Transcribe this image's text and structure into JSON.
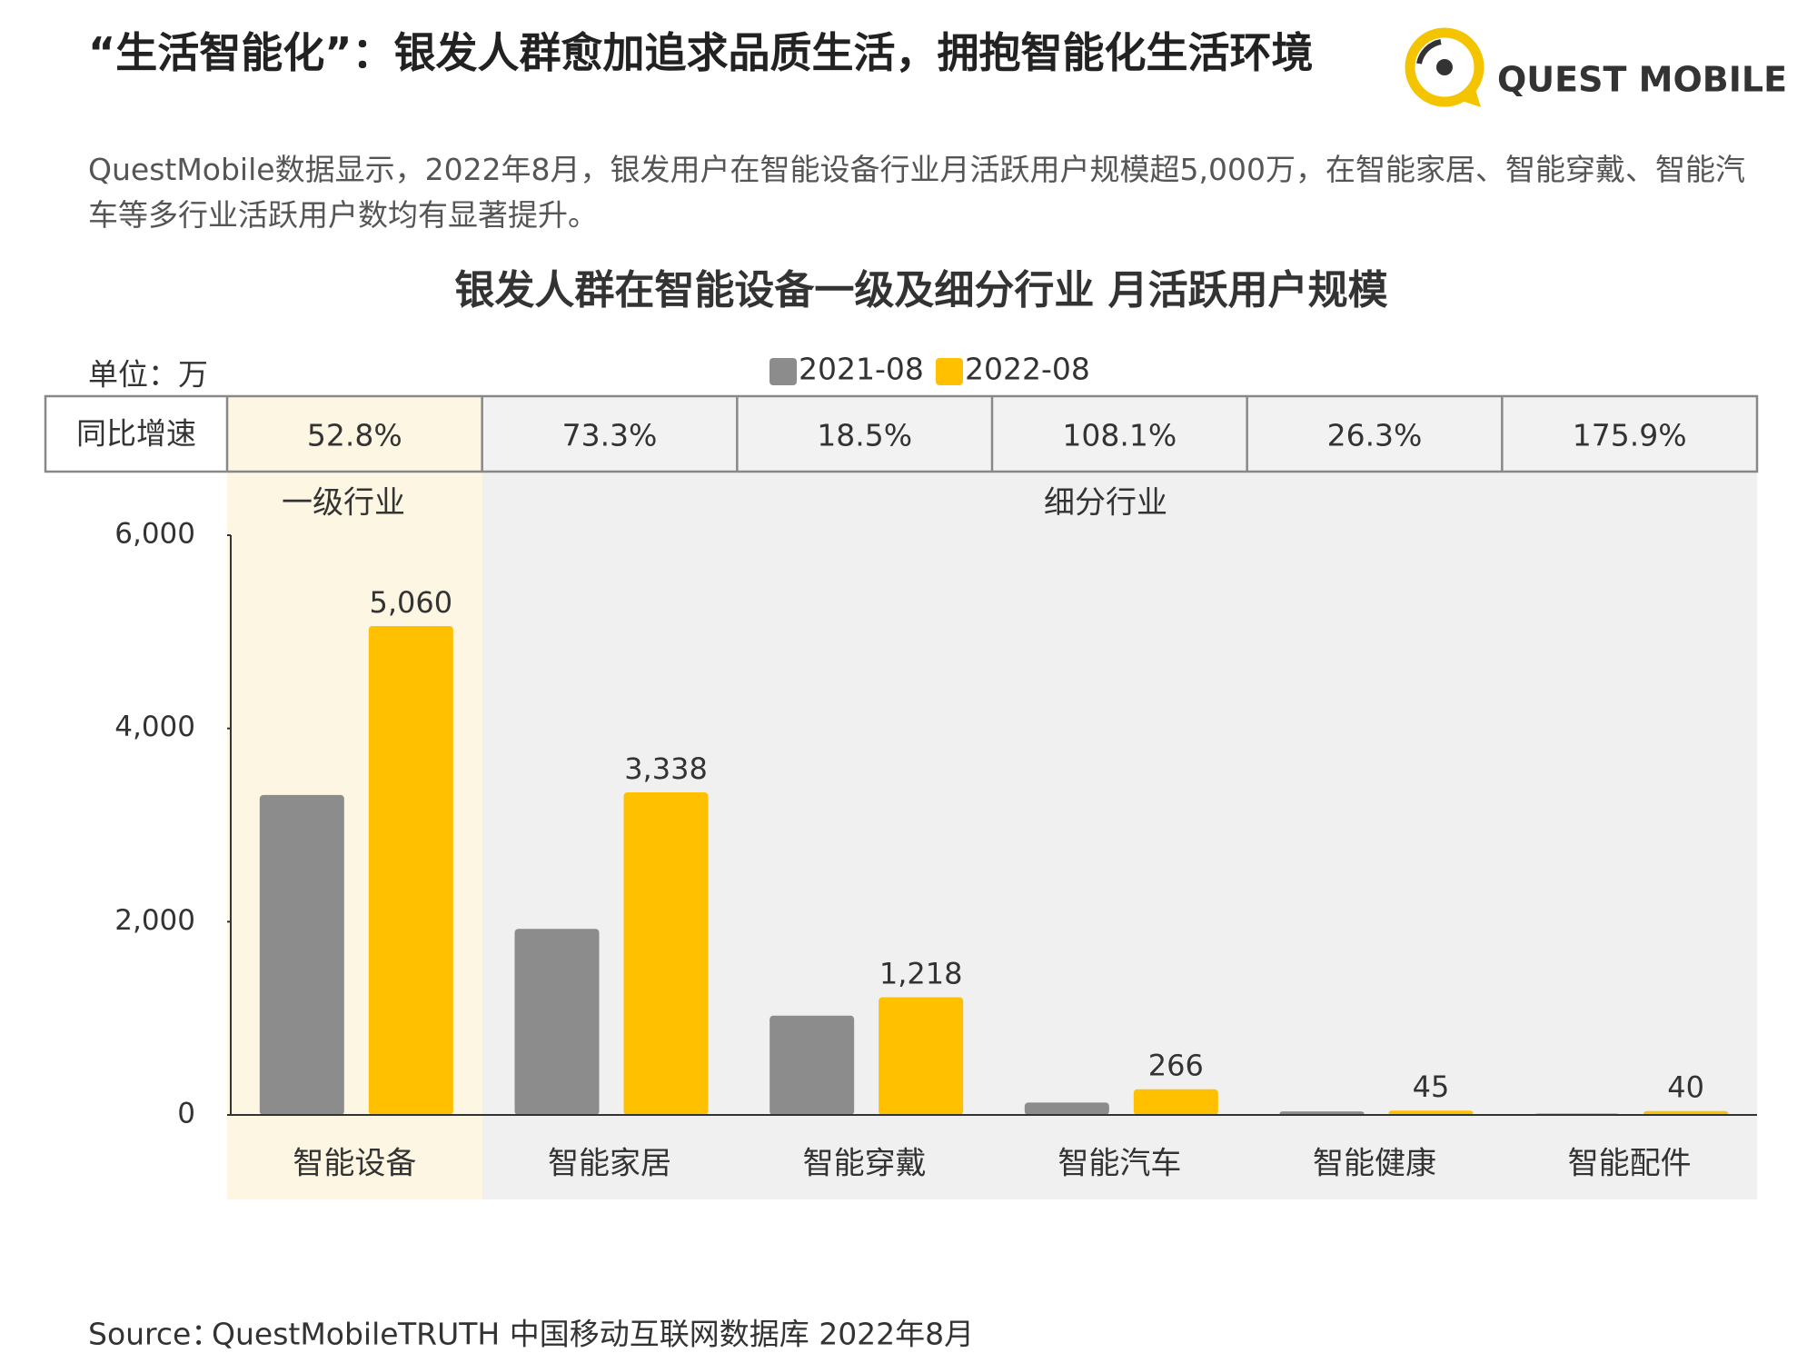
{
  "header": {
    "title": "“生活智能化”：银发人群愈加追求品质生活，拥抱智能化生活环境",
    "subtitle": "QuestMobile数据显示，2022年8月，银发用户在智能设备行业月活跃用户规模超5,000万，在智能家居、智能穿戴、智能汽车等多行业活跃用户数均有显著提升。",
    "logo": "QUEST MOBILE"
  },
  "unit": "单位：万",
  "growth_table": {
    "label": "同比增速",
    "values": [
      "52.8%",
      "73.3%",
      "18.5%",
      "108.1%",
      "26.3%",
      "175.9%"
    ]
  },
  "groups": [
    "一级行业",
    "细分行业"
  ],
  "source": {
    "label": "Source：",
    "brand": "QuestMobile",
    "text": "TRUTH 中国移动互联网数据库 2022年8月"
  },
  "chart_data": {
    "type": "bar",
    "title": "银发人群在智能设备一级及细分行业 月活跃用户规模",
    "categories": [
      "智能设备",
      "智能家居",
      "智能穿戴",
      "智能汽车",
      "智能健康",
      "智能配件"
    ],
    "series": [
      {
        "name": "2021-08",
        "color": "#8c8c8c",
        "values": [
          3311,
          1926,
          1028,
          128,
          36,
          14
        ]
      },
      {
        "name": "2022-08",
        "color": "#ffc000",
        "values": [
          5060,
          3338,
          1218,
          266,
          45,
          40
        ],
        "value_labels": [
          "5,060",
          "3,338",
          "1,218",
          "266",
          "45",
          "40"
        ]
      }
    ],
    "ylim": [
      0,
      6000
    ],
    "yticks": [
      0,
      {
        "value": 2000,
        "label": "2,000"
      },
      {
        "value": 4000,
        "label": "4,000"
      },
      {
        "value": 6000,
        "label": "6,000"
      }
    ]
  }
}
